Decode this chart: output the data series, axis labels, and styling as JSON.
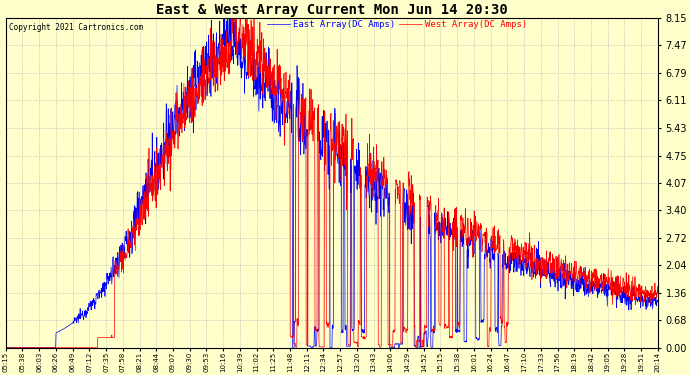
{
  "title": "East & West Array Current Mon Jun 14 20:30",
  "copyright": "Copyright 2021 Cartronics.com",
  "legend_east": "East Array(DC Amps)",
  "legend_west": "West Array(DC Amps)",
  "east_color": "#0000ff",
  "west_color": "#ff0000",
  "background_color": "#ffffcc",
  "grid_color": "#bbbbbb",
  "ymin": 0.0,
  "ymax": 8.15,
  "yticks": [
    0.0,
    0.68,
    1.36,
    2.04,
    2.72,
    3.4,
    4.07,
    4.75,
    5.43,
    6.11,
    6.79,
    7.47,
    8.15
  ],
  "xtick_labels": [
    "05:15",
    "05:38",
    "06:03",
    "06:26",
    "06:49",
    "07:12",
    "07:35",
    "07:58",
    "08:21",
    "08:44",
    "09:07",
    "09:30",
    "09:53",
    "10:16",
    "10:39",
    "11:02",
    "11:25",
    "11:48",
    "12:11",
    "12:34",
    "12:57",
    "13:20",
    "13:43",
    "14:06",
    "14:29",
    "14:52",
    "15:15",
    "15:38",
    "16:01",
    "16:24",
    "16:47",
    "17:10",
    "17:33",
    "17:56",
    "18:19",
    "18:42",
    "19:05",
    "19:28",
    "19:51",
    "20:14"
  ],
  "figwidth": 6.9,
  "figheight": 3.75,
  "dpi": 100
}
